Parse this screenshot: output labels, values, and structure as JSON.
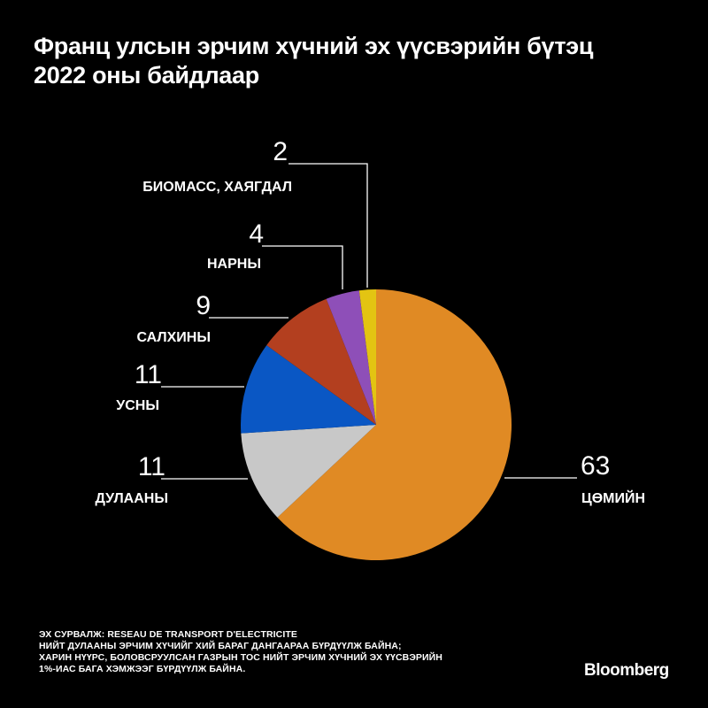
{
  "title": {
    "line1": "Франц улсын эрчим хүчний эх үүсвэрийн бүтэц",
    "line2": "2022 оны байдлаар"
  },
  "chart_data": {
    "type": "pie",
    "title": "Франц улсын эрчим хүчний эх үүсвэрийн бүтэц 2022 оны байдлаар",
    "slices": [
      {
        "label": "ЦӨМИЙН",
        "value": 63,
        "color": "#e08a24"
      },
      {
        "label": "ДУЛААНЫ",
        "value": 11,
        "color": "#c8c8c8"
      },
      {
        "label": "УСНЫ",
        "value": 11,
        "color": "#0a57c4"
      },
      {
        "label": "САЛХИНЫ",
        "value": 9,
        "color": "#b33f1f"
      },
      {
        "label": "НАРНЫ",
        "value": 4,
        "color": "#8e4fb8"
      },
      {
        "label": "БИОМАСС, ХАЯГДАЛ",
        "value": 2,
        "color": "#e3c412"
      }
    ]
  },
  "footer": {
    "line1": "ЭХ СУРВАЛЖ: RESEAU DE TRANSPORT D'ELECTRICITE",
    "line2": "НИЙТ ДУЛААНЫ ЭРЧИМ ХҮЧИЙГ ХИЙ БАРАГ ДАНГААРАА БҮРДҮҮЛЖ БАЙНА;",
    "line3": "ХАРИН НҮҮРС, БОЛОВСРУУЛСАН ГАЗРЫН ТОС НИЙТ ЭРЧИМ ХҮЧНИЙ ЭХ ҮҮСВЭРИЙН",
    "line4": "1%-ИАС БАГА ХЭМЖЭЭГ БҮРДҮҮЛЖ БАЙНА."
  },
  "brand": "Bloomberg"
}
